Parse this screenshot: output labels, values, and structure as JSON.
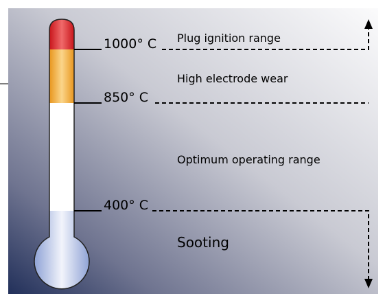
{
  "temperatures": [
    "1000° C",
    "850° C",
    "400° C"
  ],
  "zones": [
    "Plug ignition range",
    "High electrode wear",
    "Optimum operating range",
    "Sooting"
  ]
}
